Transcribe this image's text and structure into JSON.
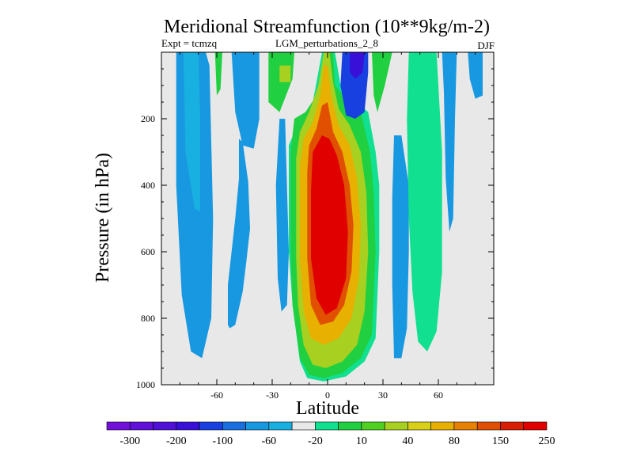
{
  "chart_data": {
    "type": "heatmap",
    "title": "Meridional Streamfunction (10**9kg/m-2)",
    "subtitle_left": "Expt = tcmzq",
    "subtitle_center": "LGM_perturbations_2_8",
    "subtitle_right": "DJF",
    "xlabel": "Latitude",
    "ylabel": "Pressure (in hPa)",
    "xlim": [
      -90,
      90
    ],
    "ylim": [
      1000,
      0
    ],
    "xticks": [
      -60,
      -30,
      0,
      30,
      60
    ],
    "xtick_labels": [
      "-60",
      "-30",
      "0",
      "30",
      "60"
    ],
    "yticks": [
      200,
      400,
      600,
      800,
      1000
    ],
    "ytick_labels": [
      "200",
      "400",
      "600",
      "800",
      "1000"
    ],
    "background_color": "#e8e8e8",
    "colorbar": {
      "colors": [
        "#7010d8",
        "#6010d8",
        "#5010d8",
        "#3810d8",
        "#1840e0",
        "#1870e0",
        "#1898e0",
        "#18b0e0",
        "#e8e8e8",
        "#10e090",
        "#20d040",
        "#50d020",
        "#a8d020",
        "#d8d018",
        "#e8b000",
        "#e88000",
        "#e05000",
        "#d82000",
        "#e00000"
      ],
      "labels": [
        "-300",
        "-200",
        "-100",
        "-60",
        "-20",
        "10",
        "40",
        "80",
        "150",
        "250"
      ],
      "label_positions": [
        1,
        3,
        5,
        7,
        9,
        11,
        13,
        15,
        17,
        19
      ]
    },
    "regions": [
      {
        "name": "sh-polar-cell",
        "value": -20,
        "polygon": [
          [
            -82,
            0
          ],
          [
            -66,
            0
          ],
          [
            -64,
            40
          ],
          [
            -62,
            500
          ],
          [
            -63,
            800
          ],
          [
            -68,
            920
          ],
          [
            -74,
            900
          ],
          [
            -79,
            730
          ],
          [
            -82,
            400
          ]
        ]
      },
      {
        "name": "sh-polar-core",
        "value": -10,
        "polygon": [
          [
            -78,
            0
          ],
          [
            -70,
            0
          ],
          [
            -69,
            200
          ],
          [
            -69,
            480
          ],
          [
            -72,
            470
          ],
          [
            -77,
            300
          ]
        ]
      },
      {
        "name": "sh-mid-upper-small",
        "value": -10,
        "polygon": [
          [
            -73,
            0
          ],
          [
            -70,
            0
          ],
          [
            -70,
            70
          ],
          [
            -73,
            70
          ]
        ]
      },
      {
        "name": "sh-ferrel-small",
        "value": 40,
        "polygon": [
          [
            -61,
            0
          ],
          [
            -57,
            0
          ],
          [
            -58,
            110
          ],
          [
            -60,
            130
          ]
        ]
      },
      {
        "name": "sh-mid-upper-cell",
        "value": -20,
        "polygon": [
          [
            -52,
            0
          ],
          [
            -37,
            0
          ],
          [
            -37,
            200
          ],
          [
            -40,
            290
          ],
          [
            -46,
            280
          ],
          [
            -50,
            180
          ]
        ]
      },
      {
        "name": "sh-ferrel-lower",
        "value": -20,
        "polygon": [
          [
            -48,
            260
          ],
          [
            -46,
            270
          ],
          [
            -43,
            390
          ],
          [
            -42,
            530
          ],
          [
            -44,
            630
          ],
          [
            -46,
            720
          ],
          [
            -50,
            820
          ],
          [
            -53,
            830
          ],
          [
            -54,
            820
          ],
          [
            -54,
            700
          ],
          [
            -50,
            500
          ],
          [
            -48,
            380
          ]
        ]
      },
      {
        "name": "sh-hadley-upper-green",
        "value": 40,
        "polygon": [
          [
            -32,
            0
          ],
          [
            -18,
            0
          ],
          [
            -19,
            80
          ],
          [
            -26,
            180
          ],
          [
            -32,
            150
          ]
        ]
      },
      {
        "name": "sh-hadley-upper-yellow",
        "value": 80,
        "polygon": [
          [
            -26,
            40
          ],
          [
            -20,
            40
          ],
          [
            -20,
            90
          ],
          [
            -26,
            90
          ]
        ]
      },
      {
        "name": "sh-left-edge-blue",
        "value": -20,
        "polygon": [
          [
            -26,
            200
          ],
          [
            -23,
            200
          ],
          [
            -21,
            600
          ],
          [
            -22,
            760
          ],
          [
            -25,
            780
          ],
          [
            -27,
            680
          ],
          [
            -28,
            400
          ]
        ]
      },
      {
        "name": "hadley-cell-outer",
        "value": 10,
        "polygon": [
          [
            -18,
            240
          ],
          [
            -21,
            280
          ],
          [
            -21,
            600
          ],
          [
            -19,
            760
          ],
          [
            -15,
            930
          ],
          [
            -11,
            980
          ],
          [
            -2,
            990
          ],
          [
            10,
            975
          ],
          [
            20,
            930
          ],
          [
            26,
            860
          ],
          [
            28,
            600
          ],
          [
            28,
            400
          ],
          [
            26,
            300
          ],
          [
            22,
            180
          ],
          [
            16,
            150
          ],
          [
            8,
            130
          ],
          [
            4,
            0
          ],
          [
            -3,
            0
          ],
          [
            -8,
            150
          ],
          [
            -14,
            240
          ]
        ]
      },
      {
        "name": "hadley-cell-40",
        "value": 40,
        "polygon": [
          [
            -18,
            200
          ],
          [
            -20,
            300
          ],
          [
            -20,
            600
          ],
          [
            -19,
            760
          ],
          [
            -15,
            920
          ],
          [
            -10,
            970
          ],
          [
            -2,
            980
          ],
          [
            8,
            965
          ],
          [
            18,
            920
          ],
          [
            24,
            850
          ],
          [
            26,
            600
          ],
          [
            25,
            420
          ],
          [
            23,
            300
          ],
          [
            18,
            180
          ],
          [
            12,
            150
          ],
          [
            4,
            100
          ],
          [
            3,
            0
          ],
          [
            -2,
            0
          ],
          [
            -6,
            130
          ],
          [
            -12,
            180
          ]
        ]
      },
      {
        "name": "hadley-cell-80",
        "value": 80,
        "polygon": [
          [
            -15,
            240
          ],
          [
            -17,
            320
          ],
          [
            -17,
            620
          ],
          [
            -16,
            760
          ],
          [
            -13,
            880
          ],
          [
            -8,
            940
          ],
          [
            -1,
            950
          ],
          [
            8,
            930
          ],
          [
            16,
            880
          ],
          [
            20,
            780
          ],
          [
            22,
            600
          ],
          [
            21,
            420
          ],
          [
            18,
            300
          ],
          [
            12,
            220
          ],
          [
            6,
            170
          ],
          [
            3,
            90
          ],
          [
            1,
            0
          ],
          [
            -2,
            0
          ],
          [
            -5,
            100
          ],
          [
            -10,
            180
          ]
        ]
      },
      {
        "name": "hadley-cell-150",
        "value": 150,
        "polygon": [
          [
            -13,
            260
          ],
          [
            -15,
            340
          ],
          [
            -15,
            620
          ],
          [
            -13,
            780
          ],
          [
            -9,
            860
          ],
          [
            -2,
            880
          ],
          [
            6,
            860
          ],
          [
            13,
            800
          ],
          [
            17,
            680
          ],
          [
            18,
            520
          ],
          [
            16,
            380
          ],
          [
            12,
            280
          ],
          [
            6,
            220
          ],
          [
            2,
            130
          ],
          [
            0,
            40
          ],
          [
            -2,
            40
          ],
          [
            -4,
            130
          ],
          [
            -8,
            210
          ]
        ]
      },
      {
        "name": "hadley-cell-250",
        "value": 250,
        "polygon": [
          [
            -10,
            280
          ],
          [
            -11,
            360
          ],
          [
            -11,
            620
          ],
          [
            -9,
            760
          ],
          [
            -4,
            820
          ],
          [
            3,
            810
          ],
          [
            9,
            760
          ],
          [
            13,
            660
          ],
          [
            14,
            520
          ],
          [
            12,
            400
          ],
          [
            8,
            300
          ],
          [
            3,
            240
          ],
          [
            0,
            150
          ],
          [
            -3,
            160
          ],
          [
            -6,
            230
          ]
        ]
      },
      {
        "name": "hadley-cell-core",
        "value": 300,
        "polygon": [
          [
            -8,
            300
          ],
          [
            -9,
            420
          ],
          [
            -9,
            620
          ],
          [
            -6,
            740
          ],
          [
            -1,
            790
          ],
          [
            5,
            770
          ],
          [
            10,
            680
          ],
          [
            11,
            540
          ],
          [
            9,
            400
          ],
          [
            5,
            310
          ],
          [
            1,
            260
          ],
          [
            -3,
            250
          ]
        ]
      },
      {
        "name": "nh-upper-blue",
        "value": -60,
        "polygon": [
          [
            8,
            0
          ],
          [
            22,
            0
          ],
          [
            22,
            60
          ],
          [
            20,
            180
          ],
          [
            15,
            200
          ],
          [
            10,
            190
          ],
          [
            7,
            100
          ]
        ]
      },
      {
        "name": "nh-upper-blue-core",
        "value": -100,
        "polygon": [
          [
            12,
            0
          ],
          [
            20,
            0
          ],
          [
            19,
            60
          ],
          [
            15,
            80
          ],
          [
            12,
            60
          ]
        ]
      },
      {
        "name": "nh-mid-green",
        "value": 40,
        "polygon": [
          [
            24,
            0
          ],
          [
            35,
            0
          ],
          [
            31,
            100
          ],
          [
            27,
            180
          ],
          [
            25,
            130
          ]
        ]
      },
      {
        "name": "nh-subtropic-blue",
        "value": -20,
        "polygon": [
          [
            36,
            250
          ],
          [
            40,
            250
          ],
          [
            44,
            400
          ],
          [
            44,
            600
          ],
          [
            43,
            830
          ],
          [
            40,
            920
          ],
          [
            36,
            920
          ],
          [
            35,
            700
          ],
          [
            35,
            440
          ]
        ]
      },
      {
        "name": "nh-ferrel-green",
        "value": 40,
        "polygon": [
          [
            46,
            0
          ],
          [
            58,
            0
          ],
          [
            60,
            200
          ],
          [
            61,
            400
          ],
          [
            60,
            660
          ],
          [
            58,
            820
          ],
          [
            54,
            880
          ],
          [
            51,
            860
          ],
          [
            48,
            700
          ],
          [
            46,
            500
          ],
          [
            45,
            250
          ]
        ]
      },
      {
        "name": "nh-ferrel-teal",
        "value": 10,
        "polygon": [
          [
            44,
            0
          ],
          [
            59,
            0
          ],
          [
            62,
            300
          ],
          [
            62,
            660
          ],
          [
            59,
            840
          ],
          [
            54,
            900
          ],
          [
            49,
            870
          ],
          [
            46,
            720
          ],
          [
            44,
            500
          ],
          [
            43,
            200
          ]
        ]
      },
      {
        "name": "nh-polar-blue",
        "value": -20,
        "polygon": [
          [
            62,
            0
          ],
          [
            70,
            0
          ],
          [
            69,
            200
          ],
          [
            68,
            500
          ],
          [
            66,
            540
          ],
          [
            64,
            380
          ],
          [
            63,
            120
          ]
        ]
      },
      {
        "name": "nh-far-polar-blue",
        "value": -20,
        "polygon": [
          [
            76,
            0
          ],
          [
            84,
            0
          ],
          [
            84,
            130
          ],
          [
            80,
            140
          ],
          [
            77,
            80
          ]
        ]
      }
    ]
  }
}
